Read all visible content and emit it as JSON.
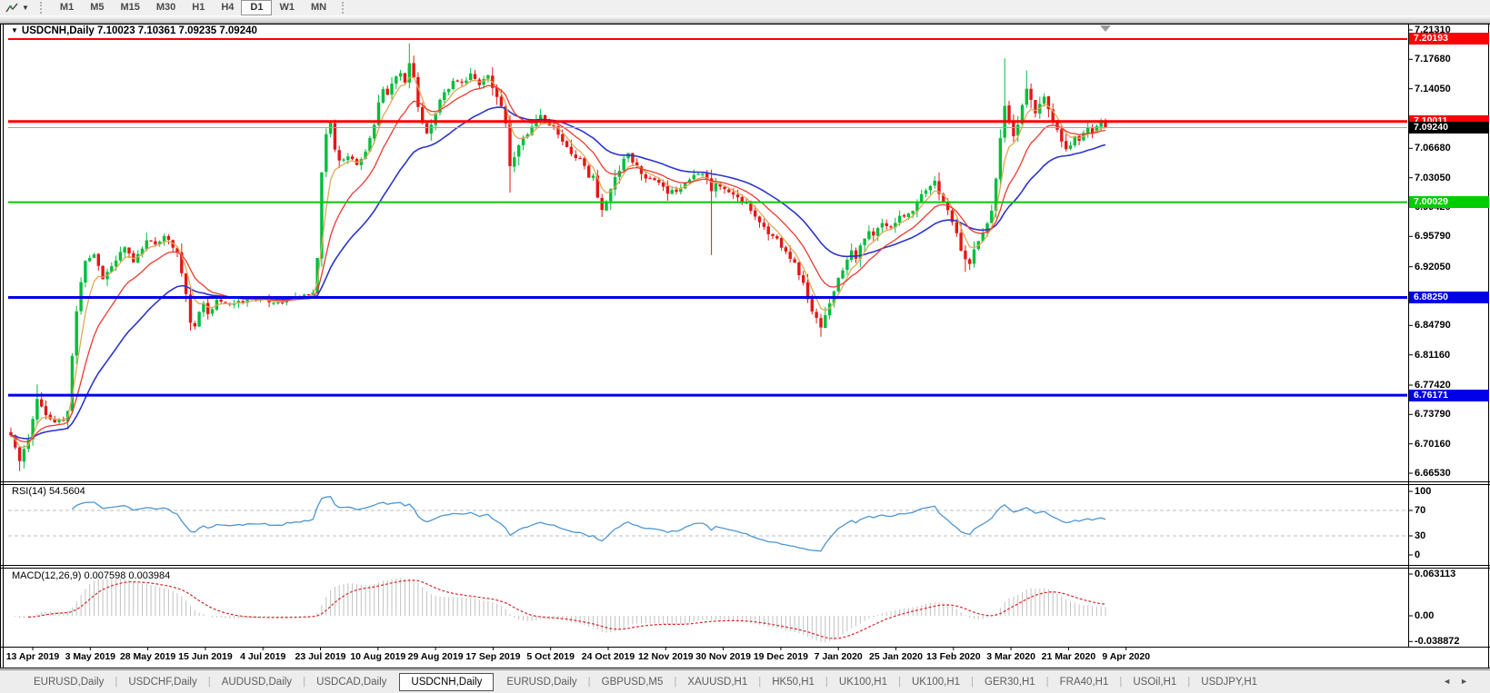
{
  "toolbar": {
    "timeframes": [
      "M1",
      "M5",
      "M15",
      "M30",
      "H1",
      "H4",
      "D1",
      "W1",
      "MN"
    ],
    "active_timeframe": "D1"
  },
  "chart_window": {
    "collapse_icon": "▼",
    "symbol": "USDCNH,Daily",
    "ohlc_text": "7.10023 7.10361 7.09235 7.09240"
  },
  "price_axis": {
    "visible_ticks": [
      "7.21310",
      "7.17680",
      "7.14050",
      "7.06680",
      "7.03050",
      "6.99420",
      "6.95790",
      "6.92050",
      "6.84790",
      "6.81160",
      "6.77420",
      "6.73790",
      "6.70160",
      "6.66530"
    ]
  },
  "hlines": [
    {
      "label": "7.20193",
      "price": 7.20193,
      "color": "#fe0000",
      "bg": "#fe0000",
      "thickness": 2
    },
    {
      "label": "7.10011",
      "price": 7.10011,
      "color": "#fe0000",
      "bg": "#fe0000",
      "thickness": 3
    },
    {
      "label": "7.09240",
      "price": 7.0924,
      "color": "#a6a6a6",
      "bg": "#000000",
      "thickness": 1
    },
    {
      "label": "7.00029",
      "price": 7.00029,
      "color": "#00cd00",
      "bg": "#00cd00",
      "thickness": 2
    },
    {
      "label": "6.88250",
      "price": 6.8825,
      "color": "#0000e8",
      "bg": "#0000e8",
      "thickness": 3
    },
    {
      "label": "6.76171",
      "price": 6.76171,
      "color": "#0000e8",
      "bg": "#0000e8",
      "thickness": 3
    }
  ],
  "rsi_panel": {
    "label": "RSI(14) 54.5604",
    "period": 14,
    "value": 54.5604,
    "levels": [
      "100",
      "70",
      "30",
      "0"
    ],
    "line_color": "#4d96d2"
  },
  "macd_panel": {
    "label": "MACD(12,26,9) 0.007598 0.003984",
    "axis_labels": [
      "0.063113",
      "0.00",
      "-0.038872"
    ],
    "macd_value": 0.007598,
    "signal_value": 0.003984,
    "histogram_color": "#c2c2c2",
    "signal_color": "#d42a2a"
  },
  "chart_data": {
    "type": "candlestick",
    "title": "USDCNH,Daily",
    "current_bar": {
      "open": 7.10023,
      "high": 7.10361,
      "low": 7.09235,
      "close": 7.0924
    },
    "y_range": [
      6.6653,
      7.2131
    ],
    "x_labels": [
      "13 Apr 2019",
      "3 May 2019",
      "28 May 2019",
      "15 Jun 2019",
      "4 Jul 2019",
      "23 Jul 2019",
      "10 Aug 2019",
      "29 Aug 2019",
      "17 Sep 2019",
      "5 Oct 2019",
      "24 Oct 2019",
      "12 Nov 2019",
      "30 Nov 2019",
      "19 Dec 2019",
      "7 Jan 2020",
      "25 Jan 2020",
      "13 Feb 2020",
      "3 Mar 2020",
      "21 Mar 2020",
      "9 Apr 2020"
    ],
    "up_color": "#00bd3c",
    "down_color": "#e41616",
    "ma_fast": {
      "period": 5,
      "color": "#dfa855"
    },
    "ma_mid": {
      "period": 13,
      "color": "#ea3b30"
    },
    "ma_slow": {
      "period": 30,
      "color": "#2c35c9"
    },
    "bars_total": 251,
    "close_waypoints": [
      [
        0,
        6.712
      ],
      [
        1,
        6.697
      ],
      [
        2,
        6.68
      ],
      [
        3,
        6.695
      ],
      [
        4,
        6.706
      ],
      [
        6,
        6.758
      ],
      [
        8,
        6.737
      ],
      [
        10,
        6.728
      ],
      [
        12,
        6.73
      ],
      [
        13,
        6.742
      ],
      [
        14,
        6.81
      ],
      [
        15,
        6.866
      ],
      [
        16,
        6.902
      ],
      [
        17,
        6.928
      ],
      [
        19,
        6.936
      ],
      [
        21,
        6.906
      ],
      [
        23,
        6.921
      ],
      [
        26,
        6.944
      ],
      [
        28,
        6.926
      ],
      [
        31,
        6.954
      ],
      [
        33,
        6.947
      ],
      [
        35,
        6.959
      ],
      [
        38,
        6.938
      ],
      [
        40,
        6.886
      ],
      [
        41,
        6.852
      ],
      [
        42,
        6.846
      ],
      [
        43,
        6.864
      ],
      [
        44,
        6.876
      ],
      [
        45,
        6.863
      ],
      [
        47,
        6.879
      ],
      [
        50,
        6.874
      ],
      [
        55,
        6.881
      ],
      [
        60,
        6.876
      ],
      [
        65,
        6.883
      ],
      [
        69,
        6.888
      ],
      [
        70,
        6.932
      ],
      [
        71,
        7.038
      ],
      [
        72,
        7.084
      ],
      [
        73,
        7.098
      ],
      [
        74,
        7.066
      ],
      [
        75,
        7.052
      ],
      [
        77,
        7.056
      ],
      [
        79,
        7.046
      ],
      [
        81,
        7.062
      ],
      [
        83,
        7.096
      ],
      [
        84,
        7.124
      ],
      [
        85,
        7.14
      ],
      [
        86,
        7.134
      ],
      [
        87,
        7.146
      ],
      [
        88,
        7.156
      ],
      [
        89,
        7.16
      ],
      [
        90,
        7.149
      ],
      [
        91,
        7.173
      ],
      [
        92,
        7.154
      ],
      [
        93,
        7.118
      ],
      [
        94,
        7.098
      ],
      [
        95,
        7.086
      ],
      [
        96,
        7.096
      ],
      [
        97,
        7.11
      ],
      [
        98,
        7.126
      ],
      [
        100,
        7.14
      ],
      [
        101,
        7.15
      ],
      [
        103,
        7.148
      ],
      [
        105,
        7.159
      ],
      [
        107,
        7.144
      ],
      [
        109,
        7.158
      ],
      [
        111,
        7.13
      ],
      [
        112,
        7.118
      ],
      [
        113,
        7.098
      ],
      [
        114,
        7.044
      ],
      [
        115,
        7.056
      ],
      [
        116,
        7.07
      ],
      [
        117,
        7.08
      ],
      [
        119,
        7.094
      ],
      [
        121,
        7.108
      ],
      [
        122,
        7.1
      ],
      [
        124,
        7.094
      ],
      [
        126,
        7.076
      ],
      [
        128,
        7.06
      ],
      [
        130,
        7.054
      ],
      [
        132,
        7.03
      ],
      [
        133,
        7.034
      ],
      [
        134,
        7.006
      ],
      [
        135,
        6.99
      ],
      [
        136,
        7.001
      ],
      [
        137,
        7.016
      ],
      [
        138,
        7.031
      ],
      [
        140,
        7.054
      ],
      [
        141,
        7.061
      ],
      [
        142,
        7.05
      ],
      [
        144,
        7.036
      ],
      [
        146,
        7.029
      ],
      [
        148,
        7.024
      ],
      [
        150,
        7.01
      ],
      [
        152,
        7.014
      ],
      [
        154,
        7.024
      ],
      [
        156,
        7.034
      ],
      [
        158,
        7.036
      ],
      [
        159,
        7.03
      ],
      [
        160,
        7.014
      ],
      [
        161,
        7.024
      ],
      [
        163,
        7.016
      ],
      [
        165,
        7.01
      ],
      [
        167,
        7.001
      ],
      [
        169,
        6.99
      ],
      [
        171,
        6.976
      ],
      [
        173,
        6.961
      ],
      [
        175,
        6.955
      ],
      [
        177,
        6.94
      ],
      [
        179,
        6.925
      ],
      [
        181,
        6.9
      ],
      [
        183,
        6.865
      ],
      [
        185,
        6.845
      ],
      [
        186,
        6.86
      ],
      [
        187,
        6.876
      ],
      [
        188,
        6.891
      ],
      [
        189,
        6.906
      ],
      [
        191,
        6.93
      ],
      [
        192,
        6.941
      ],
      [
        193,
        6.931
      ],
      [
        194,
        6.946
      ],
      [
        195,
        6.955
      ],
      [
        196,
        6.964
      ],
      [
        197,
        6.959
      ],
      [
        199,
        6.974
      ],
      [
        201,
        6.969
      ],
      [
        203,
        6.984
      ],
      [
        205,
        6.986
      ],
      [
        207,
        7.0
      ],
      [
        209,
        7.014
      ],
      [
        211,
        7.026
      ],
      [
        213,
        7.001
      ],
      [
        215,
        6.976
      ],
      [
        217,
        6.941
      ],
      [
        218,
        6.929
      ],
      [
        219,
        6.924
      ],
      [
        220,
        6.941
      ],
      [
        221,
        6.951
      ],
      [
        223,
        6.974
      ],
      [
        224,
        6.99
      ],
      [
        225,
        7.03
      ],
      [
        226,
        7.08
      ],
      [
        227,
        7.12
      ],
      [
        228,
        7.101
      ],
      [
        229,
        7.081
      ],
      [
        230,
        7.096
      ],
      [
        231,
        7.12
      ],
      [
        232,
        7.141
      ],
      [
        233,
        7.126
      ],
      [
        234,
        7.111
      ],
      [
        235,
        7.121
      ],
      [
        236,
        7.131
      ],
      [
        237,
        7.116
      ],
      [
        238,
        7.101
      ],
      [
        239,
        7.09
      ],
      [
        240,
        7.076
      ],
      [
        241,
        7.066
      ],
      [
        242,
        7.071
      ],
      [
        243,
        7.081
      ],
      [
        244,
        7.076
      ],
      [
        245,
        7.086
      ],
      [
        246,
        7.091
      ],
      [
        247,
        7.086
      ],
      [
        248,
        7.094
      ],
      [
        249,
        7.099
      ],
      [
        250,
        7.0924
      ]
    ],
    "wick_overrides": {
      "2": {
        "l": 6.668
      },
      "6": {
        "h": 6.775
      },
      "91": {
        "h": 7.1965
      },
      "114": {
        "l": 7.012
      },
      "135": {
        "l": 6.982
      },
      "160": {
        "l": 6.935
      },
      "185": {
        "l": 6.834
      },
      "218": {
        "l": 6.914
      },
      "227": {
        "h": 7.178
      },
      "232": {
        "h": 7.163
      },
      "250": {
        "o": 7.10023,
        "h": 7.10361,
        "l": 7.09235,
        "c": 7.0924
      }
    }
  },
  "tabs": {
    "items": [
      "EURUSD,Daily",
      "USDCHF,Daily",
      "AUDUSD,Daily",
      "USDCAD,Daily",
      "USDCNH,Daily",
      "EURUSD,Daily",
      "GBPUSD,M5",
      "XAUUSD,H1",
      "HK50,H1",
      "UK100,H1",
      "UK100,H1",
      "GER30,H1",
      "FRA40,H1",
      "USOil,H1",
      "USDJPY,H1"
    ],
    "active_index": 4,
    "left_arrow": "◄",
    "right_arrow": "►"
  }
}
